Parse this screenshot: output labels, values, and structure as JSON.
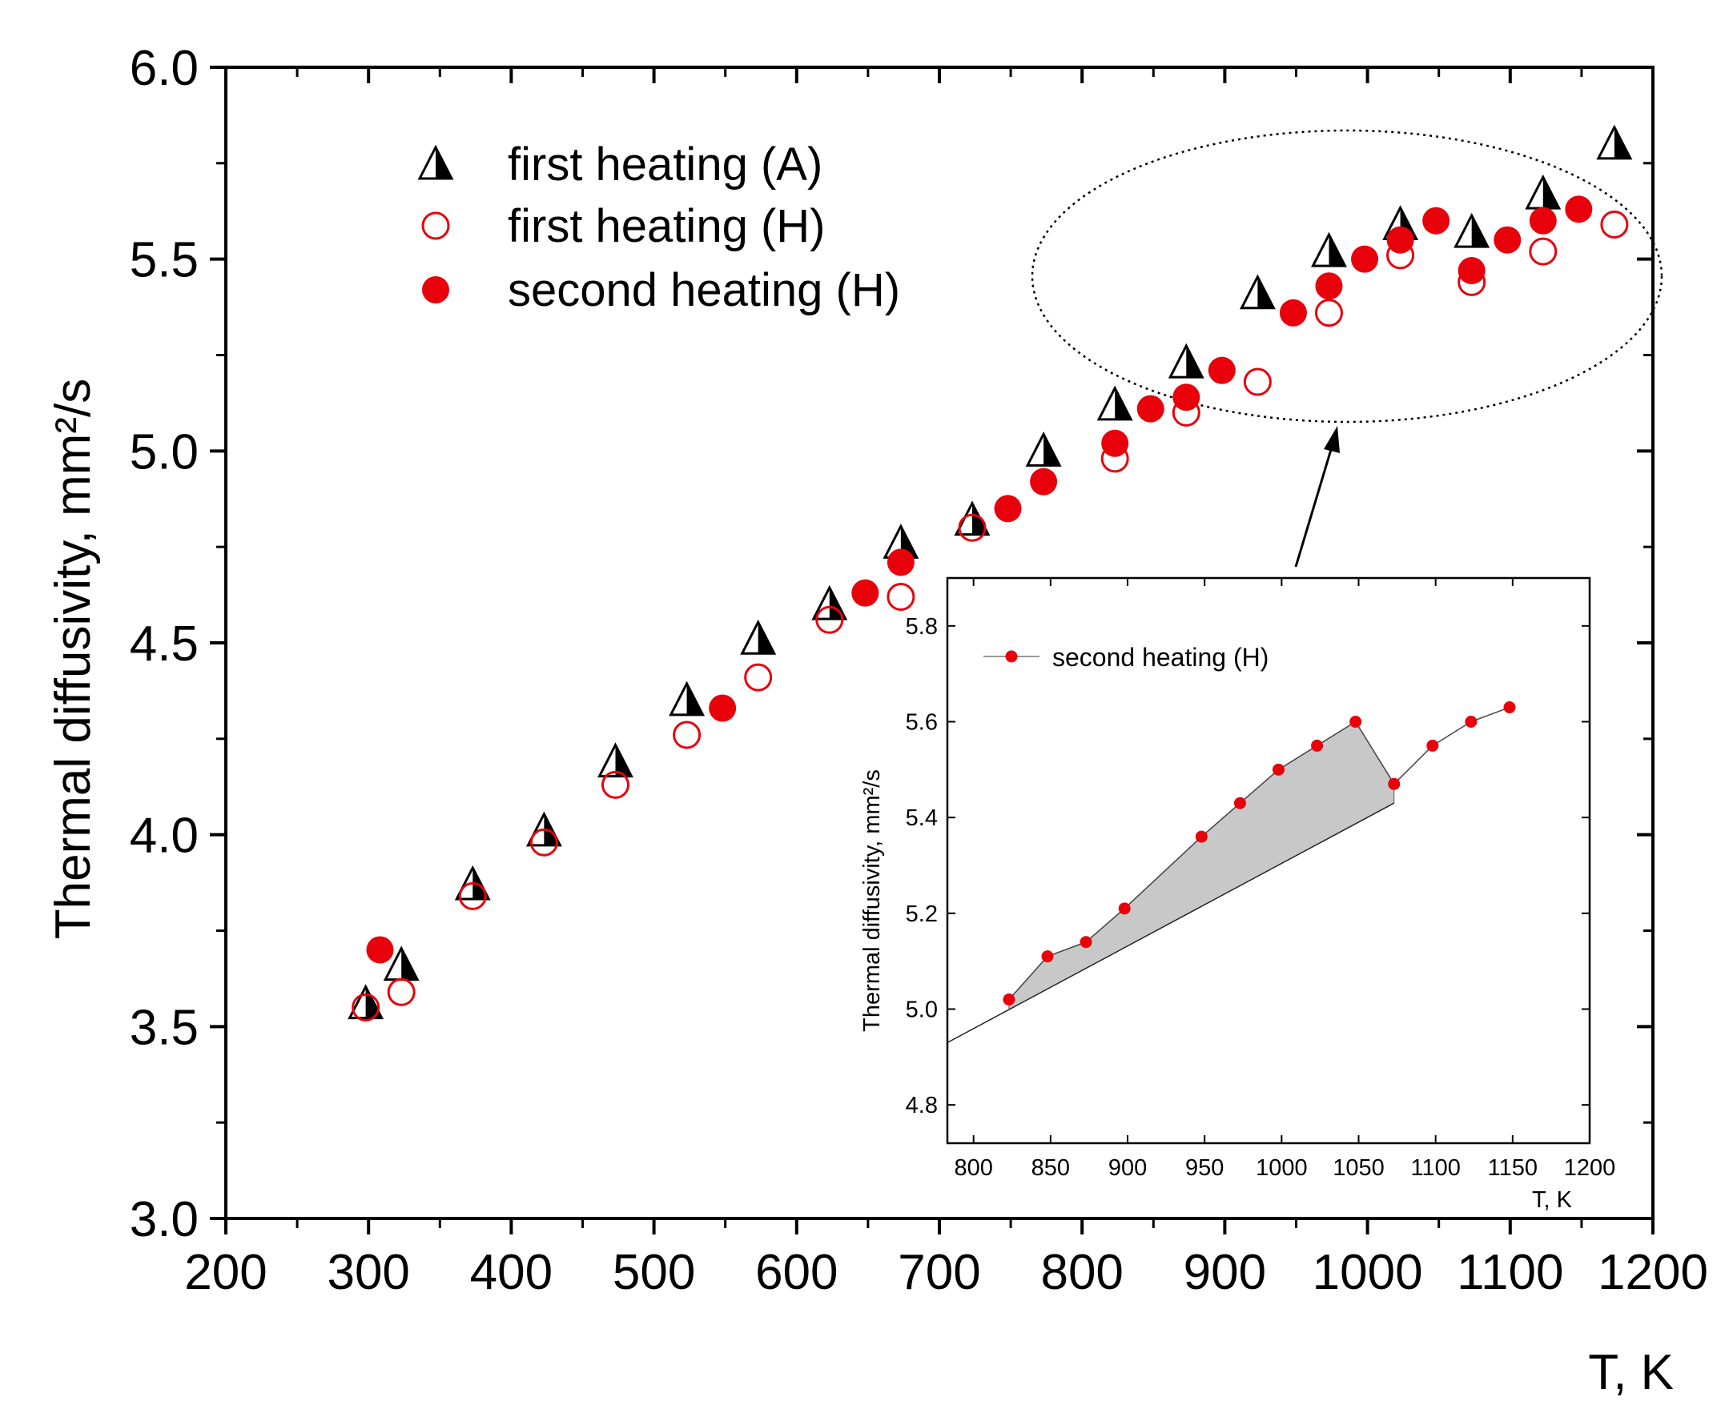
{
  "chart_data": [
    {
      "type": "scatter",
      "title": "",
      "xlabel": "T, K",
      "ylabel": "Thermal diffusivity, mm²/s",
      "xlim": [
        200,
        1200
      ],
      "ylim": [
        3.0,
        6.0
      ],
      "x_ticks": [
        "200",
        "300",
        "400",
        "500",
        "600",
        "700",
        "800",
        "900",
        "1000",
        "1100",
        "1200"
      ],
      "y_ticks": [
        "3.0",
        "3.5",
        "4.0",
        "4.5",
        "5.0",
        "5.5",
        "6.0"
      ],
      "legend_position": "top-left",
      "series": [
        {
          "name": "first heating (A)",
          "marker": "half-filled-triangle",
          "color": "#000000",
          "x": [
            298,
            323,
            373,
            423,
            473,
            523,
            573,
            623,
            673,
            723,
            773,
            823,
            873,
            923,
            973,
            1023,
            1073,
            1123,
            1173
          ],
          "y": [
            3.56,
            3.66,
            3.87,
            4.01,
            4.19,
            4.35,
            4.51,
            4.6,
            4.76,
            4.82,
            5.0,
            5.12,
            5.23,
            5.41,
            5.52,
            5.59,
            5.57,
            5.67,
            5.8
          ]
        },
        {
          "name": "first heating (H)",
          "marker": "open-circle",
          "color": "#e8000b",
          "x": [
            298,
            323,
            373,
            423,
            473,
            523,
            573,
            623,
            673,
            723,
            823,
            873,
            923,
            973,
            1023,
            1073,
            1123,
            1173
          ],
          "y": [
            3.55,
            3.59,
            3.84,
            3.98,
            4.13,
            4.26,
            4.41,
            4.56,
            4.62,
            4.8,
            4.98,
            5.1,
            5.18,
            5.36,
            5.51,
            5.44,
            5.52,
            5.59
          ]
        },
        {
          "name": "second heating (H)",
          "marker": "filled-circle",
          "color": "#e8000b",
          "x": [
            308,
            548,
            648,
            673,
            748,
            773,
            823,
            848,
            873,
            898,
            948,
            973,
            998,
            1023,
            1048,
            1073,
            1098,
            1123,
            1148
          ],
          "y": [
            3.7,
            4.33,
            4.63,
            4.71,
            4.85,
            4.92,
            5.02,
            5.11,
            5.14,
            5.21,
            5.36,
            5.43,
            5.5,
            5.55,
            5.6,
            5.47,
            5.55,
            5.6,
            5.63
          ]
        }
      ]
    },
    {
      "type": "line",
      "title": "",
      "xlabel": "T, K",
      "ylabel": "Thermal diffusivity, mm²/s",
      "xlim": [
        783,
        1200
      ],
      "ylim": [
        4.72,
        5.9
      ],
      "x_ticks": [
        "800",
        "850",
        "900",
        "950",
        "1000",
        "1050",
        "1100",
        "1150",
        "1200"
      ],
      "y_ticks": [
        "4.8",
        "5.0",
        "5.2",
        "5.4",
        "5.6",
        "5.8"
      ],
      "legend_position": "top-left",
      "series": [
        {
          "name": "second heating (H)",
          "marker": "filled-circle",
          "color": "#e8000b",
          "x": [
            823,
            848,
            873,
            898,
            948,
            973,
            998,
            1023,
            1048,
            1073,
            1098,
            1123,
            1148
          ],
          "y": [
            5.02,
            5.11,
            5.14,
            5.21,
            5.36,
            5.43,
            5.5,
            5.55,
            5.6,
            5.47,
            5.55,
            5.6,
            5.63
          ]
        }
      ],
      "baseline": {
        "x": [
          783,
          1073
        ],
        "y": [
          4.93,
          5.43
        ]
      },
      "shaded_region_fill": "#c8c8c8"
    }
  ]
}
